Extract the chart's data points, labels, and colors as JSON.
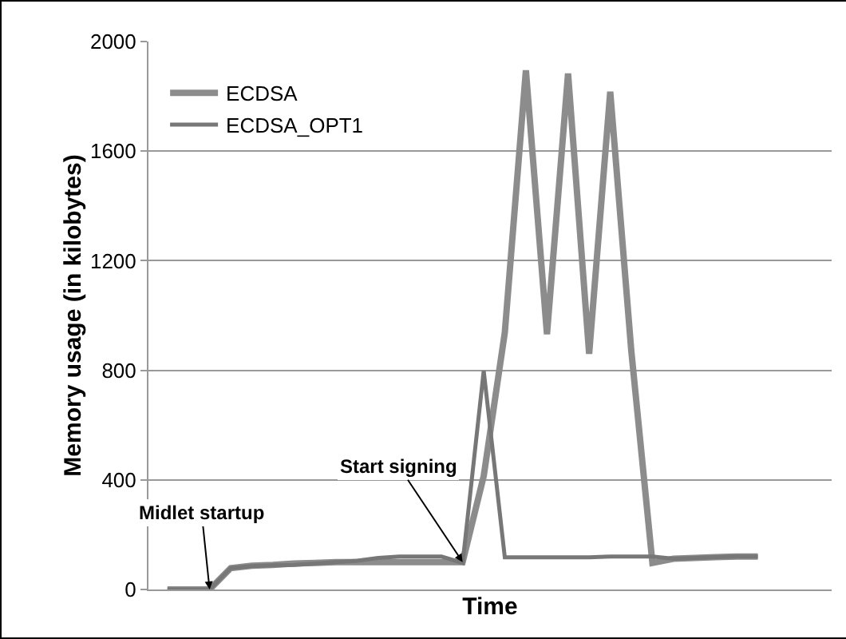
{
  "chart_data": {
    "type": "line",
    "xlabel": "Time",
    "ylabel": "Memory usage (in kilobytes)",
    "categories": [
      null,
      null,
      null,
      null,
      null,
      null,
      null,
      null,
      null,
      null,
      null,
      null,
      null,
      null,
      null,
      null,
      null,
      null,
      null,
      null,
      null,
      null,
      null,
      null,
      null,
      null,
      null,
      null,
      null
    ],
    "series": [
      {
        "name": "ECDSA",
        "color": "#8c8c8c",
        "values": [
          0,
          0,
          0,
          78,
          87,
          90,
          95,
          97,
          100,
          100,
          100,
          100,
          100,
          100,
          100,
          414,
          938,
          1895,
          932,
          1883,
          860,
          1817,
          870,
          97,
          112,
          115,
          118,
          120,
          120
        ]
      },
      {
        "name": "ECDSA_OPT1",
        "color": "#777777",
        "values": [
          0,
          0,
          0,
          78,
          85,
          88,
          90,
          95,
          100,
          105,
          115,
          120,
          120,
          120,
          97,
          798,
          117,
          117,
          117,
          117,
          117,
          120,
          120,
          120,
          112,
          115,
          118,
          120,
          120
        ]
      }
    ],
    "ylim": [
      0,
      2000
    ],
    "yticks": [
      0,
      400,
      800,
      1200,
      1600,
      2000
    ],
    "grid": "y",
    "legend": "top left",
    "marker": "none",
    "line_style": "solid",
    "annotations": [
      "Midlet startup",
      "Start signing"
    ]
  }
}
